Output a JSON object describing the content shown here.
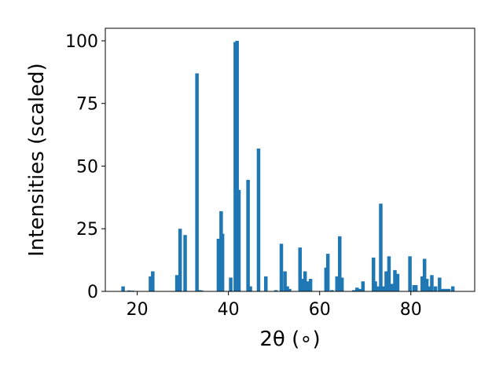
{
  "chart_data": {
    "type": "bar",
    "xlabel": "2θ (∘)",
    "ylabel": "Intensities (scaled)",
    "xlim": [
      13,
      94
    ],
    "ylim": [
      0,
      105
    ],
    "xticks": [
      20,
      40,
      60,
      80
    ],
    "yticks": [
      0,
      25,
      50,
      75,
      100
    ],
    "grid": false,
    "bar_color": "#1f77b4",
    "x": [
      16.9,
      18.2,
      19.0,
      22.9,
      23.4,
      28.7,
      29.4,
      30.5,
      33.1,
      33.6,
      34.1,
      37.8,
      38.4,
      38.7,
      40.5,
      41.5,
      41.9,
      42.3,
      44.3,
      44.8,
      46.6,
      48.2,
      50.4,
      51.6,
      52.4,
      52.9,
      53.4,
      55.7,
      56.1,
      56.8,
      57.3,
      58.0,
      61.4,
      61.8,
      62.7,
      63.8,
      64.4,
      64.9,
      67.5,
      68.2,
      68.9,
      69.5,
      71.8,
      72.2,
      72.7,
      73.4,
      74.0,
      74.6,
      75.2,
      75.9,
      76.5,
      77.1,
      79.8,
      80.7,
      81.1,
      82.5,
      83.0,
      83.5,
      84.0,
      84.6,
      85.4,
      86.3,
      86.9,
      87.6,
      88.3,
      89.2
    ],
    "values": [
      2,
      0.4,
      0.3,
      6,
      8,
      6.5,
      25,
      22.5,
      87,
      0.5,
      0.4,
      21,
      32,
      23,
      5.5,
      99.5,
      100,
      40.5,
      44.5,
      2,
      57,
      6,
      0.5,
      19,
      8,
      2,
      1,
      17.5,
      5,
      8,
      4,
      5,
      9.5,
      15,
      0.5,
      6,
      22,
      5.5,
      0.5,
      1.5,
      1,
      4,
      13.5,
      4,
      2,
      35,
      2,
      8,
      14,
      3,
      8.5,
      7,
      14,
      2.5,
      2.5,
      6,
      13,
      5,
      2,
      6.5,
      2,
      5.5,
      1,
      1,
      1,
      2
    ]
  }
}
